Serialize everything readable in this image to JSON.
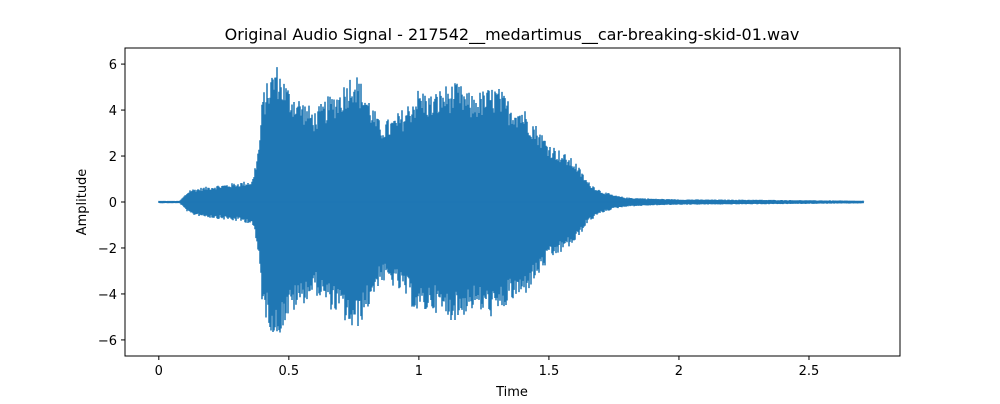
{
  "chart_data": {
    "type": "line",
    "title": "Original Audio Signal - 217542__medartimus__car-breaking-skid-01.wav",
    "xlabel": "Time",
    "ylabel": "Amplitude",
    "xlim": [
      -0.13,
      2.85
    ],
    "ylim": [
      -6.7,
      6.7
    ],
    "xticks": [
      0,
      0.5,
      1,
      1.5,
      2,
      2.5
    ],
    "xtick_labels": [
      "0",
      "0.5",
      "1",
      "1.5",
      "2",
      "2.5"
    ],
    "yticks": [
      -6,
      -4,
      -2,
      0,
      2,
      4,
      6
    ],
    "ytick_labels": [
      "−6",
      "−4",
      "−2",
      "0",
      "2",
      "4",
      "6"
    ],
    "grid": false,
    "series": [
      {
        "color": "#1f77b4",
        "x_range": [
          0,
          2.71
        ],
        "envelope": {
          "t": [
            0.0,
            0.08,
            0.1,
            0.12,
            0.2,
            0.3,
            0.36,
            0.385,
            0.4,
            0.42,
            0.45,
            0.5,
            0.55,
            0.6,
            0.65,
            0.7,
            0.75,
            0.8,
            0.85,
            0.9,
            0.95,
            1.0,
            1.05,
            1.1,
            1.15,
            1.2,
            1.25,
            1.3,
            1.35,
            1.4,
            1.45,
            1.5,
            1.55,
            1.6,
            1.65,
            1.7,
            1.75,
            1.8,
            1.9,
            2.0,
            2.3,
            2.71
          ],
          "amp": [
            0.05,
            0.05,
            0.3,
            0.55,
            0.7,
            0.85,
            0.95,
            2.5,
            4.8,
            5.3,
            6.1,
            5.0,
            4.5,
            4.0,
            4.6,
            5.0,
            5.8,
            4.8,
            3.5,
            3.7,
            4.2,
            5.0,
            4.7,
            5.1,
            5.2,
            4.7,
            4.9,
            5.1,
            4.4,
            4.2,
            3.4,
            2.6,
            2.2,
            1.8,
            0.9,
            0.5,
            0.3,
            0.2,
            0.15,
            0.12,
            0.1,
            0.06
          ]
        }
      }
    ]
  }
}
